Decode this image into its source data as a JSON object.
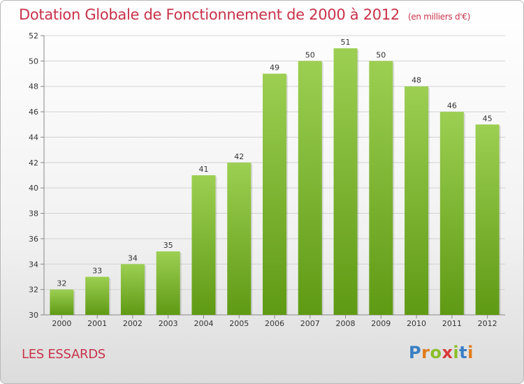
{
  "title": "Dotation Globale de Fonctionnement de 2000 à 2012",
  "subtitle": "(en milliers d'€)",
  "commune": "LES ESSARDS",
  "logo": {
    "text": "Proxiti",
    "letter_colors": [
      "#3a7fc4",
      "#e07b1a",
      "#8bbf2a",
      "#d83a3a",
      "#8bbf2a",
      "#3a7fc4",
      "#e07b1a"
    ]
  },
  "colors": {
    "bar_top": "#9ccf52",
    "bar_bottom": "#5f9a14",
    "grid": "#d2d2d2",
    "title": "#c8324a"
  },
  "chart_data": {
    "type": "bar",
    "categories": [
      "2000",
      "2001",
      "2002",
      "2003",
      "2004",
      "2005",
      "2006",
      "2007",
      "2008",
      "2009",
      "2010",
      "2011",
      "2012"
    ],
    "values": [
      32,
      33,
      34,
      35,
      41,
      42,
      49,
      50,
      51,
      50,
      48,
      46,
      45
    ],
    "ylim": [
      30,
      52
    ],
    "yticks": [
      30,
      32,
      34,
      36,
      38,
      40,
      42,
      44,
      46,
      48,
      50,
      52
    ],
    "grid": true,
    "xlabel": "",
    "ylabel": ""
  }
}
